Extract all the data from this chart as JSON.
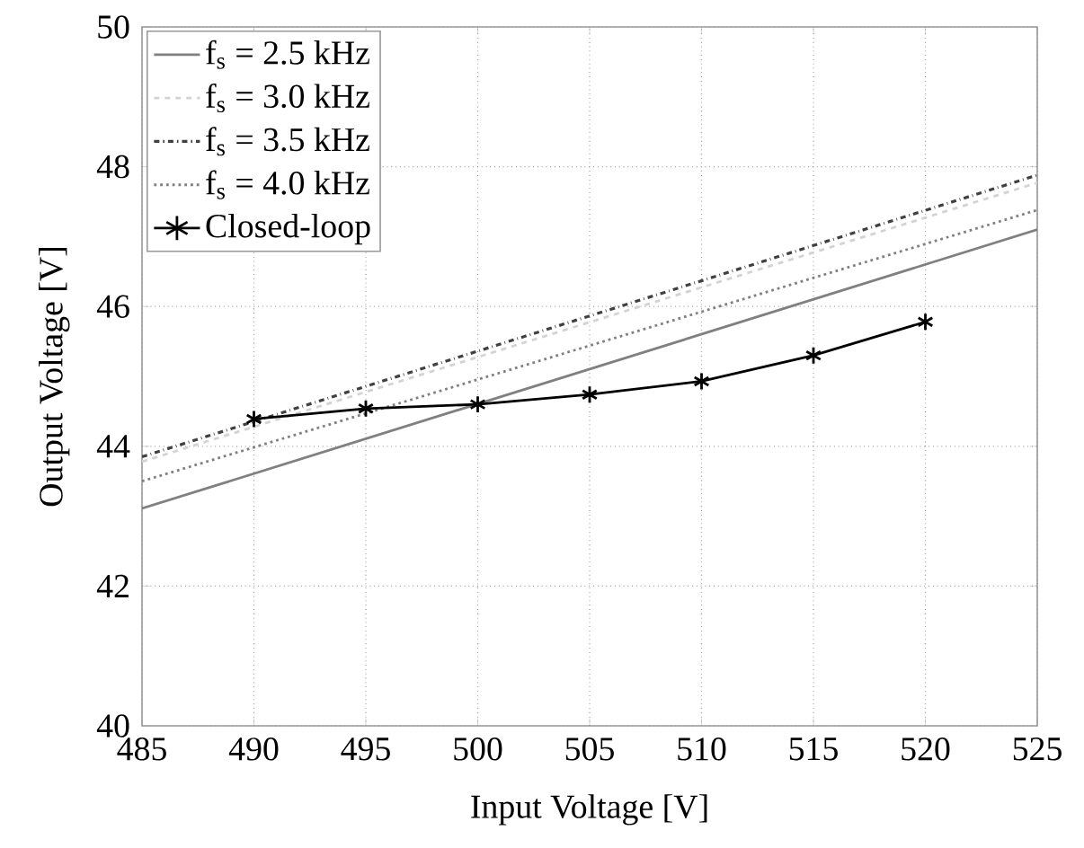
{
  "chart_data": {
    "type": "line",
    "xlabel": "Input Voltage [V]",
    "ylabel": "Output Voltage [V]",
    "xlim": [
      485,
      525
    ],
    "xticks": [
      485,
      490,
      495,
      500,
      505,
      510,
      515,
      520,
      525
    ],
    "ylim": [
      40,
      50
    ],
    "yticks": [
      40,
      42,
      44,
      46,
      48,
      50
    ],
    "grid": true,
    "legend": "top left",
    "series": [
      {
        "name": "f$_{s}$ = 2.5 kHz",
        "color": "#808080",
        "line_style": "solid",
        "marker": "none",
        "x": [
          485,
          525
        ],
        "values": [
          43.11,
          47.1
        ]
      },
      {
        "name": "f$_{s}$ = 3.0 kHz",
        "color": "#d3d3d3",
        "line_style": "dashed",
        "marker": "none",
        "x": [
          485,
          525
        ],
        "values": [
          43.78,
          47.77
        ]
      },
      {
        "name": "f$_{s}$ = 3.5 kHz",
        "color": "#404040",
        "line_style": "dashdot",
        "marker": "none",
        "x": [
          485,
          525
        ],
        "values": [
          43.85,
          47.88
        ]
      },
      {
        "name": "f$_{s}$ = 4.0 kHz",
        "color": "#808080",
        "line_style": "dotted",
        "marker": "none",
        "x": [
          485,
          525
        ],
        "values": [
          43.5,
          47.38
        ]
      },
      {
        "name": "Closed-loop",
        "color": "#000000",
        "line_style": "solid",
        "marker": "cross",
        "x": [
          490,
          495,
          500,
          505,
          510,
          515,
          520
        ],
        "values": [
          44.39,
          44.54,
          44.6,
          44.74,
          44.93,
          45.3,
          45.78
        ]
      }
    ]
  }
}
